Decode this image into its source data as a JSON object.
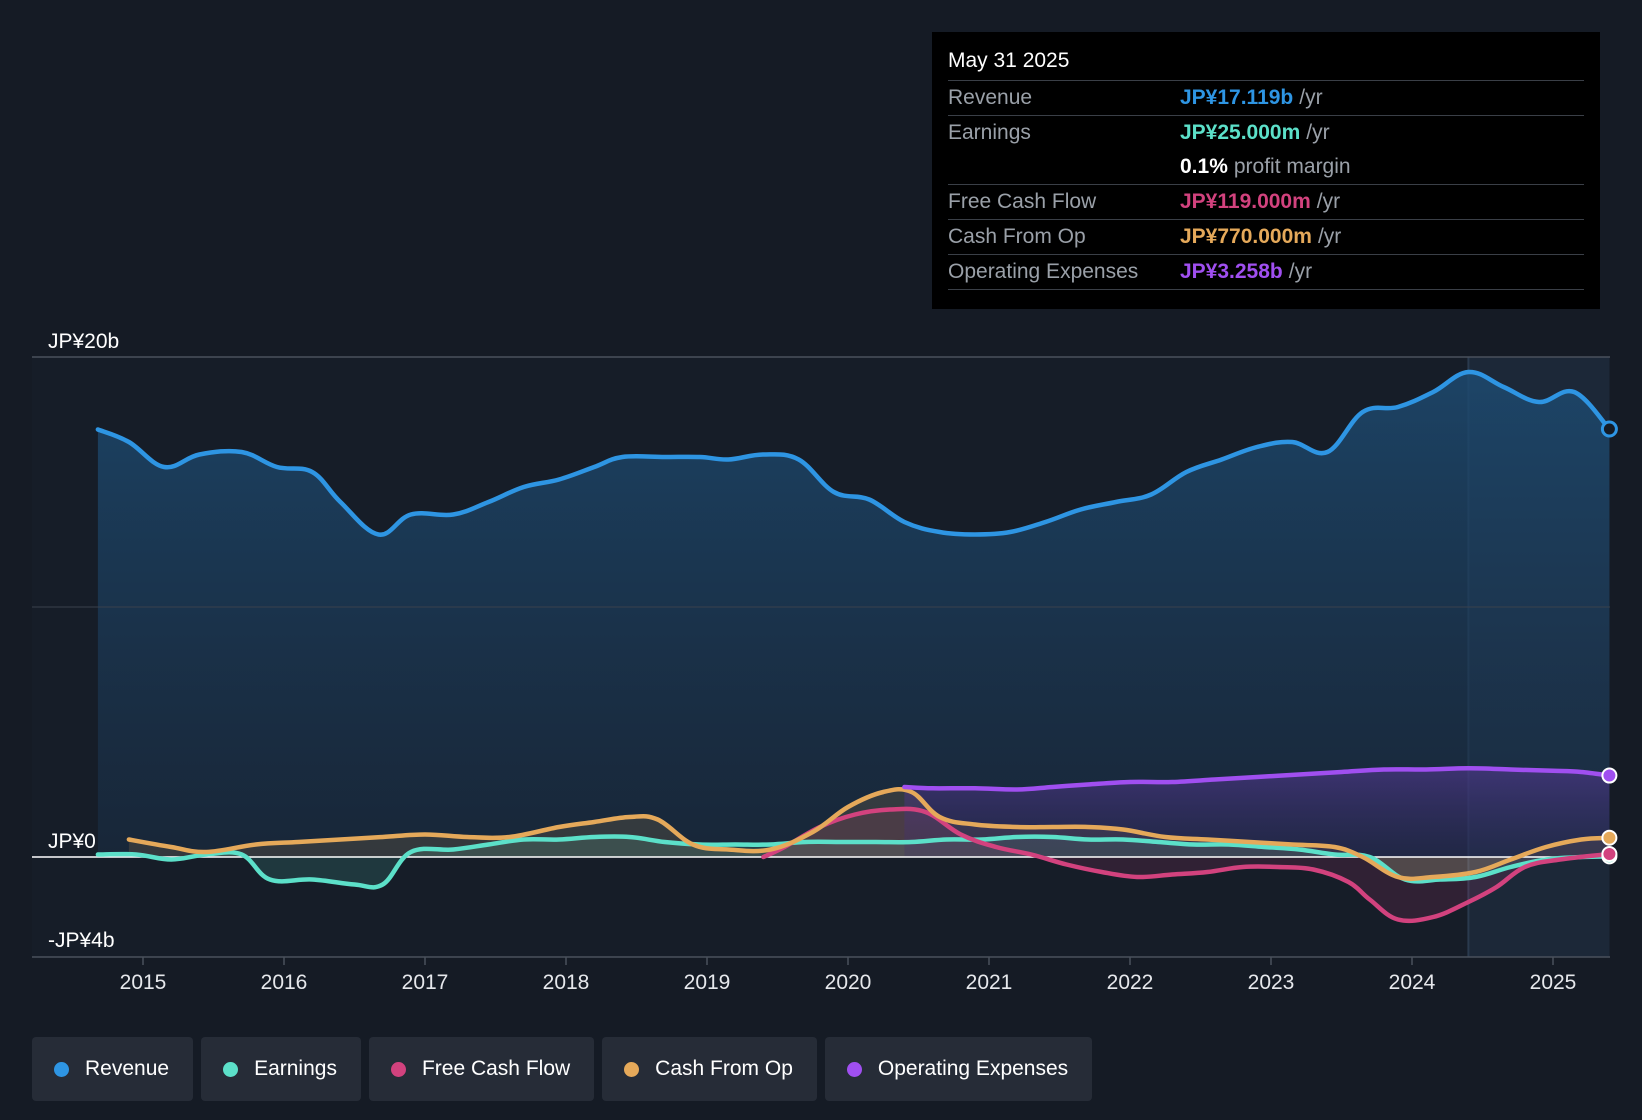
{
  "chart_data": {
    "type": "line",
    "y_axis": {
      "labels": [
        "JP¥20b",
        "JP¥0",
        "-JP¥4b"
      ],
      "ylim": [
        -4,
        20
      ],
      "unit": "JP¥ billions"
    },
    "x_axis": {
      "ticks": [
        "2015",
        "2016",
        "2017",
        "2018",
        "2019",
        "2020",
        "2021",
        "2022",
        "2023",
        "2024",
        "2025"
      ],
      "range": [
        2014.6,
        2025.4
      ]
    },
    "series": [
      {
        "name": "Revenue",
        "color": "#2e95e3",
        "x": [
          2014.68,
          2014.9,
          2015.15,
          2015.4,
          2015.7,
          2015.95,
          2016.2,
          2016.4,
          2016.67,
          2016.9,
          2017.2,
          2017.45,
          2017.7,
          2017.95,
          2018.2,
          2018.4,
          2018.7,
          2018.95,
          2019.15,
          2019.4,
          2019.65,
          2019.9,
          2020.15,
          2020.4,
          2020.65,
          2020.9,
          2021.15,
          2021.4,
          2021.65,
          2021.9,
          2022.15,
          2022.4,
          2022.65,
          2022.9,
          2023.15,
          2023.4,
          2023.65,
          2023.9,
          2024.15,
          2024.4,
          2024.65,
          2024.9,
          2025.15,
          2025.4
        ],
        "values": [
          17.1,
          16.6,
          15.6,
          16.1,
          16.2,
          15.6,
          15.4,
          14.2,
          12.9,
          13.7,
          13.7,
          14.2,
          14.8,
          15.1,
          15.6,
          16.0,
          16.0,
          16.0,
          15.9,
          16.1,
          15.9,
          14.6,
          14.3,
          13.4,
          13.0,
          12.9,
          13.0,
          13.4,
          13.9,
          14.2,
          14.5,
          15.4,
          15.9,
          16.4,
          16.6,
          16.2,
          17.8,
          18.0,
          18.6,
          19.4,
          18.8,
          18.2,
          18.6,
          17.119
        ]
      },
      {
        "name": "Earnings",
        "color": "#5ce0c9",
        "x": [
          2014.68,
          2014.95,
          2015.2,
          2015.45,
          2015.7,
          2015.9,
          2016.2,
          2016.5,
          2016.7,
          2016.9,
          2017.2,
          2017.45,
          2017.7,
          2017.95,
          2018.2,
          2018.45,
          2018.7,
          2018.95,
          2019.2,
          2019.45,
          2019.7,
          2019.95,
          2020.2,
          2020.45,
          2020.7,
          2020.95,
          2021.2,
          2021.45,
          2021.7,
          2021.95,
          2022.2,
          2022.45,
          2022.7,
          2022.95,
          2023.2,
          2023.45,
          2023.7,
          2023.95,
          2024.2,
          2024.45,
          2024.7,
          2024.95,
          2025.2,
          2025.4
        ],
        "values": [
          0.1,
          0.1,
          -0.1,
          0.1,
          0.1,
          -0.9,
          -0.9,
          -1.1,
          -1.1,
          0.2,
          0.3,
          0.5,
          0.7,
          0.7,
          0.8,
          0.8,
          0.6,
          0.5,
          0.5,
          0.5,
          0.6,
          0.6,
          0.6,
          0.6,
          0.7,
          0.7,
          0.8,
          0.8,
          0.7,
          0.7,
          0.6,
          0.5,
          0.5,
          0.4,
          0.3,
          0.1,
          0.0,
          -0.9,
          -0.9,
          -0.8,
          -0.4,
          -0.1,
          0.0,
          0.025
        ]
      },
      {
        "name": "Free Cash Flow",
        "color": "#d2427e",
        "x": [
          2019.4,
          2019.55,
          2019.8,
          2020.05,
          2020.3,
          2020.55,
          2020.8,
          2021.05,
          2021.3,
          2021.55,
          2021.8,
          2022.05,
          2022.3,
          2022.55,
          2022.8,
          2023.05,
          2023.3,
          2023.55,
          2023.7,
          2023.9,
          2024.15,
          2024.4,
          2024.6,
          2024.8,
          2025.05,
          2025.4
        ],
        "values": [
          0.0,
          0.4,
          1.2,
          1.7,
          1.9,
          1.8,
          0.9,
          0.4,
          0.1,
          -0.3,
          -0.6,
          -0.8,
          -0.7,
          -0.6,
          -0.4,
          -0.4,
          -0.5,
          -1.0,
          -1.7,
          -2.5,
          -2.4,
          -1.8,
          -1.2,
          -0.4,
          -0.1,
          0.119
        ]
      },
      {
        "name": "Cash From Op",
        "color": "#e5a95a",
        "x": [
          2014.9,
          2015.2,
          2015.45,
          2015.8,
          2016.1,
          2016.4,
          2016.7,
          2017.0,
          2017.3,
          2017.6,
          2017.95,
          2018.2,
          2018.45,
          2018.65,
          2018.9,
          2019.15,
          2019.45,
          2019.75,
          2020.0,
          2020.25,
          2020.45,
          2020.65,
          2020.9,
          2021.2,
          2021.45,
          2021.7,
          2021.95,
          2022.25,
          2022.55,
          2022.85,
          2023.15,
          2023.45,
          2023.65,
          2023.9,
          2024.15,
          2024.45,
          2024.7,
          2024.95,
          2025.2,
          2025.4
        ],
        "values": [
          0.7,
          0.4,
          0.2,
          0.5,
          0.6,
          0.7,
          0.8,
          0.9,
          0.8,
          0.8,
          1.2,
          1.4,
          1.6,
          1.5,
          0.5,
          0.3,
          0.3,
          1.0,
          2.0,
          2.6,
          2.6,
          1.6,
          1.3,
          1.2,
          1.2,
          1.2,
          1.1,
          0.8,
          0.7,
          0.6,
          0.5,
          0.4,
          0.0,
          -0.8,
          -0.8,
          -0.6,
          -0.1,
          0.4,
          0.7,
          0.77
        ]
      },
      {
        "name": "Operating Expenses",
        "color": "#a04ff0",
        "x": [
          2020.4,
          2020.6,
          2020.9,
          2021.2,
          2021.45,
          2021.7,
          2022.0,
          2022.3,
          2022.6,
          2022.9,
          2023.2,
          2023.5,
          2023.8,
          2024.1,
          2024.4,
          2024.7,
          2025.0,
          2025.2,
          2025.4
        ],
        "values": [
          2.8,
          2.75,
          2.75,
          2.7,
          2.8,
          2.9,
          3.0,
          3.0,
          3.1,
          3.2,
          3.3,
          3.4,
          3.5,
          3.5,
          3.55,
          3.5,
          3.45,
          3.4,
          3.258
        ]
      }
    ],
    "highlight_from": 2024.4
  },
  "tooltip": {
    "date": "May 31 2025",
    "rows": [
      {
        "label": "Revenue",
        "value": "JP¥17.119b",
        "unit": "/yr",
        "color": "#2e95e3"
      },
      {
        "label": "Earnings",
        "value": "JP¥25.000m",
        "unit": "/yr",
        "color": "#5ce0c9"
      },
      {
        "label": "",
        "value": "0.1%",
        "unit": "profit margin",
        "color": "#ffffff"
      },
      {
        "label": "Free Cash Flow",
        "value": "JP¥119.000m",
        "unit": "/yr",
        "color": "#d2427e"
      },
      {
        "label": "Cash From Op",
        "value": "JP¥770.000m",
        "unit": "/yr",
        "color": "#e5a95a"
      },
      {
        "label": "Operating Expenses",
        "value": "JP¥3.258b",
        "unit": "/yr",
        "color": "#a04ff0"
      }
    ]
  },
  "legend": [
    {
      "label": "Revenue",
      "color": "#2e95e3"
    },
    {
      "label": "Earnings",
      "color": "#5ce0c9"
    },
    {
      "label": "Free Cash Flow",
      "color": "#d2427e"
    },
    {
      "label": "Cash From Op",
      "color": "#e5a95a"
    },
    {
      "label": "Operating Expenses",
      "color": "#a04ff0"
    }
  ]
}
